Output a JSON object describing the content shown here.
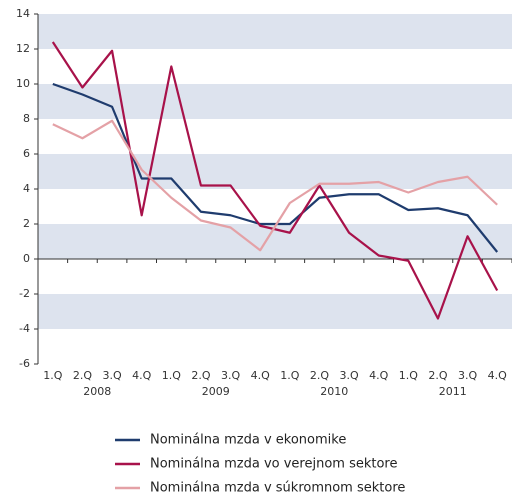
{
  "chart_data": {
    "type": "line",
    "categories": [
      "1.Q",
      "2.Q",
      "3.Q",
      "4.Q",
      "1.Q",
      "2.Q",
      "3.Q",
      "4.Q",
      "1.Q",
      "2.Q",
      "3.Q",
      "4.Q",
      "1.Q",
      "2.Q",
      "3.Q",
      "4.Q"
    ],
    "years": [
      "2008",
      "2009",
      "2010",
      "2011"
    ],
    "series": [
      {
        "name": "Nominálna mzda v ekonomike",
        "color": "#1f3c6e",
        "values": [
          10.0,
          9.4,
          8.7,
          4.6,
          4.6,
          2.7,
          2.5,
          2.0,
          2.0,
          3.5,
          3.7,
          3.7,
          2.8,
          2.9,
          2.5,
          0.4
        ]
      },
      {
        "name": "Nominálna mzda vo verejnom sektore",
        "color": "#a8124a",
        "values": [
          12.4,
          9.8,
          11.9,
          2.5,
          11.0,
          4.2,
          4.2,
          1.9,
          1.5,
          4.2,
          1.5,
          0.2,
          -0.1,
          -3.4,
          1.3,
          -1.8
        ]
      },
      {
        "name": "Nominálna mzda v súkromnom sektore",
        "color": "#e4a1a6",
        "values": [
          7.7,
          6.9,
          7.9,
          5.1,
          3.5,
          2.2,
          1.8,
          0.5,
          3.2,
          4.3,
          4.3,
          4.4,
          3.8,
          4.4,
          4.7,
          3.1
        ]
      }
    ],
    "ylim": [
      -6,
      14
    ],
    "yticks": [
      -6,
      -4,
      -2,
      0,
      2,
      4,
      6,
      8,
      10,
      12,
      14
    ],
    "band_color": "#dde3ee"
  }
}
